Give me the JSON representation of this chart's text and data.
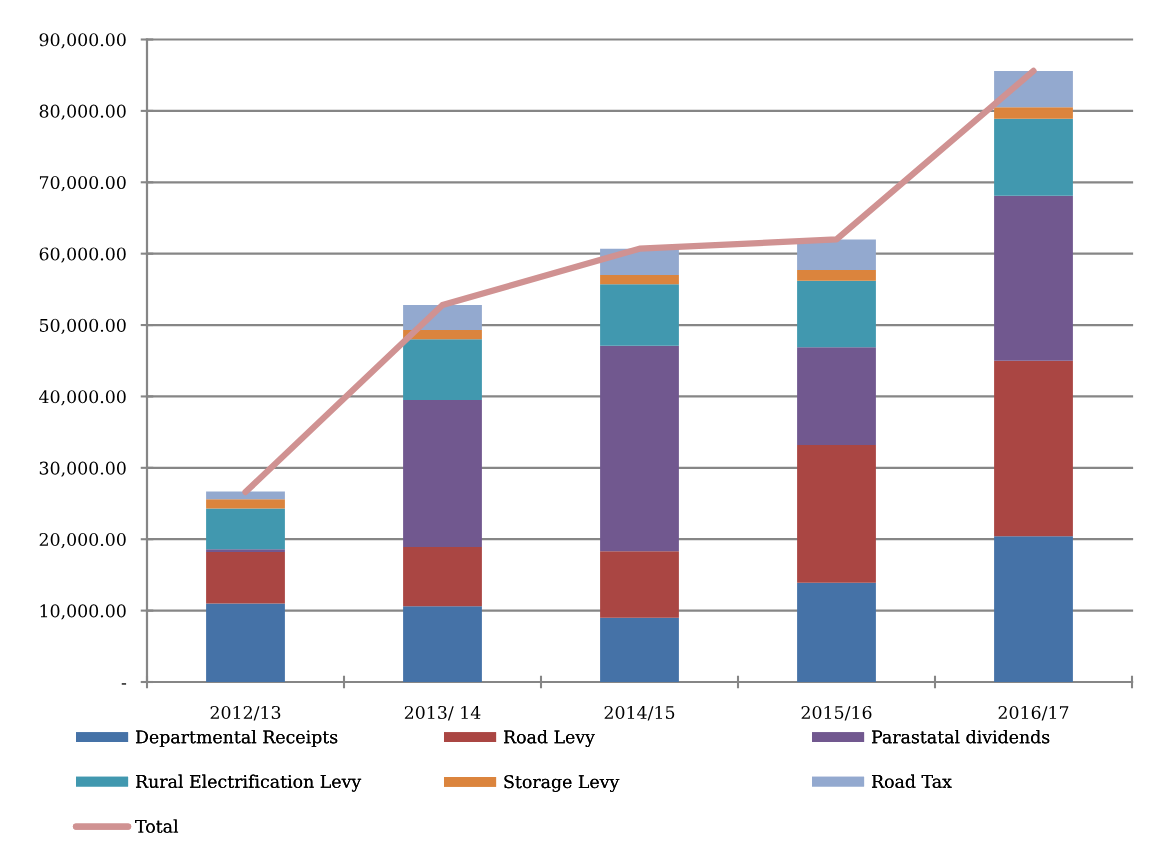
{
  "chart_data": {
    "type": "bar",
    "stacked": true,
    "categories": [
      "2012/13",
      "2013/ 14",
      "2014/15",
      "2015/16",
      "2016/17"
    ],
    "series": [
      {
        "name": "Departmental Receipts",
        "color": "#4572a7",
        "values": [
          11000,
          10600,
          9000,
          13900,
          20400
        ]
      },
      {
        "name": "Road Levy",
        "color": "#aa4643",
        "values": [
          7200,
          8300,
          9300,
          19300,
          24600
        ]
      },
      {
        "name": "Parastatal dividends",
        "color": "#71588f",
        "values": [
          400,
          20600,
          28800,
          13700,
          23100
        ]
      },
      {
        "name": "Rural Electrification Levy",
        "color": "#4198af",
        "values": [
          5700,
          8500,
          8600,
          9300,
          10800
        ]
      },
      {
        "name": "Storage Levy",
        "color": "#db843d",
        "values": [
          1300,
          1300,
          1300,
          1500,
          1600
        ]
      },
      {
        "name": "Road Tax",
        "color": "#93a9cf",
        "values": [
          1100,
          3500,
          3700,
          4300,
          5100
        ]
      },
      {
        "name": "Total",
        "type": "line",
        "color": "#d09292",
        "values": [
          26600,
          52800,
          60700,
          62000,
          85600
        ]
      }
    ],
    "ylim": [
      0,
      90000
    ],
    "yticks": [
      {
        "value": 0,
        "label": "-"
      },
      {
        "value": 10000,
        "label": "10,000.00"
      },
      {
        "value": 20000,
        "label": "20,000.00"
      },
      {
        "value": 30000,
        "label": "30,000.00"
      },
      {
        "value": 40000,
        "label": "40,000.00"
      },
      {
        "value": 50000,
        "label": "50,000.00"
      },
      {
        "value": 60000,
        "label": "60,000.00"
      },
      {
        "value": 70000,
        "label": "70,000.00"
      },
      {
        "value": 80000,
        "label": "80,000.00"
      },
      {
        "value": 90000,
        "label": "90,000.00"
      }
    ],
    "grid": "y",
    "legend": "bottom"
  }
}
